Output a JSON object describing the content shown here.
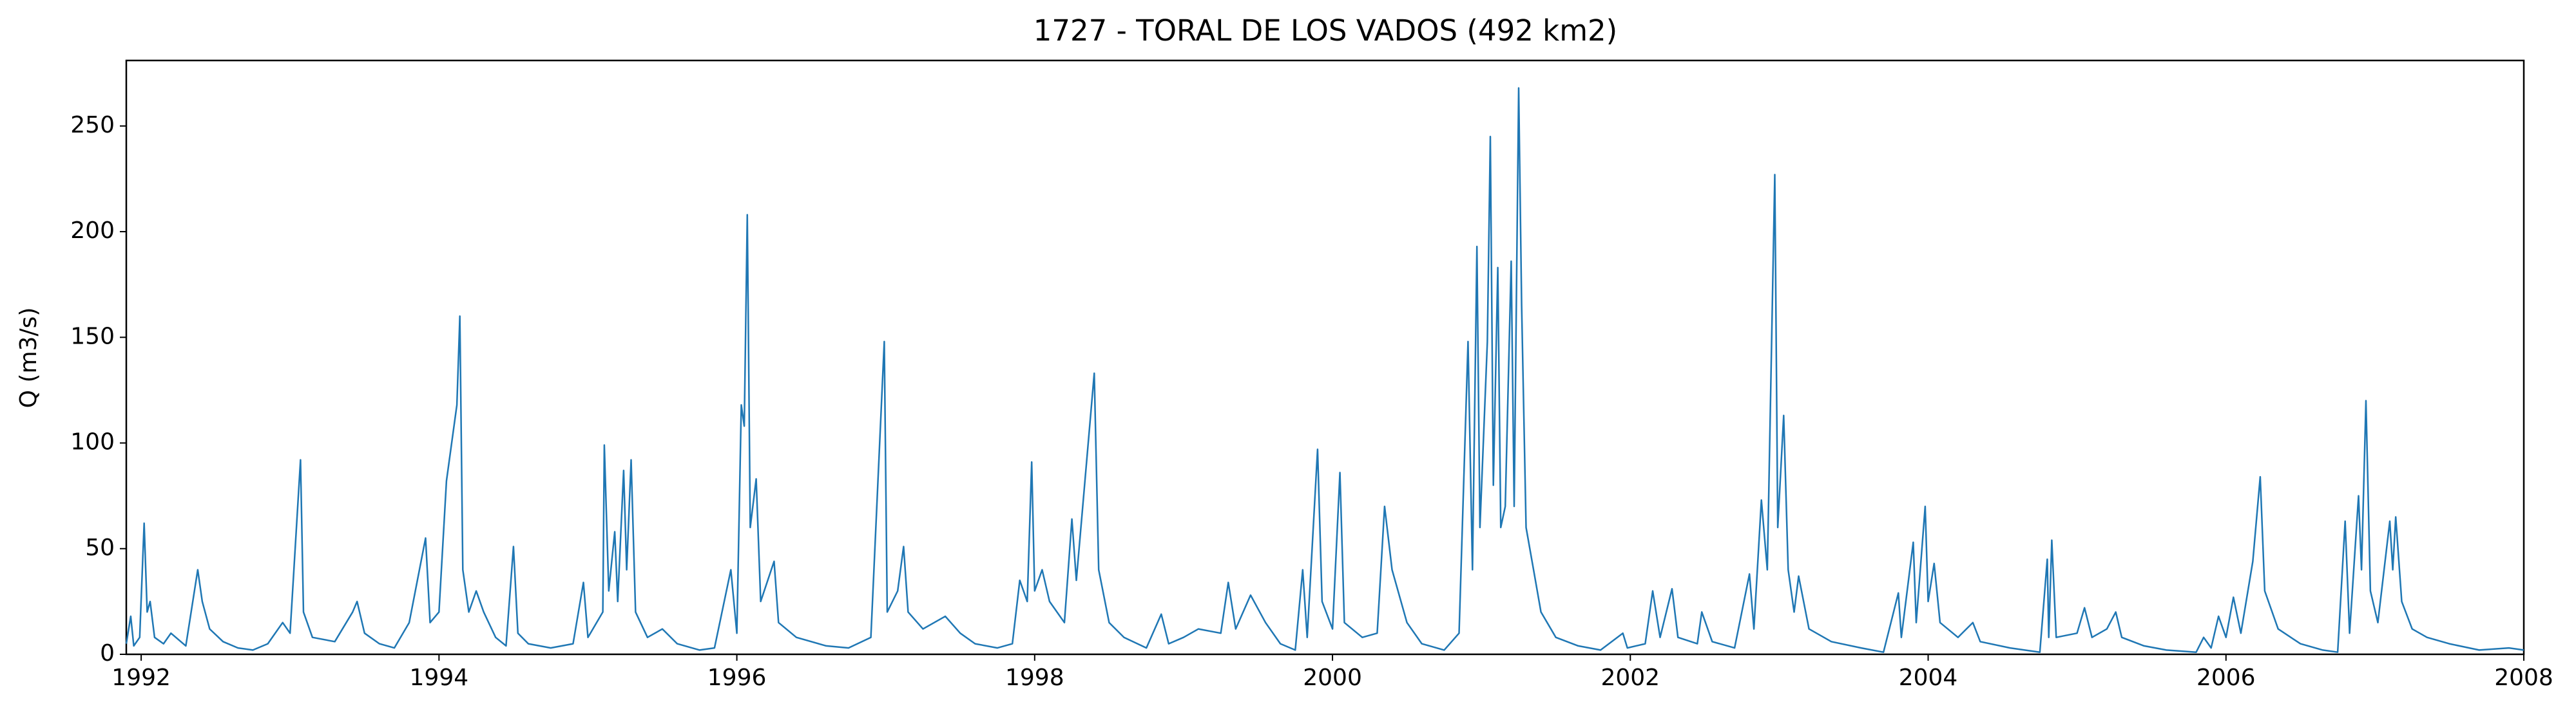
{
  "chart_data": {
    "type": "line",
    "title": "1727 - TORAL DE LOS VADOS (492 km2)",
    "y_label": "Q (m3/s)",
    "color": "#1f77b4",
    "x": [
      1991.9,
      1991.93,
      1991.95,
      1991.99,
      1992.02,
      1992.04,
      1992.06,
      1992.09,
      1992.15,
      1992.2,
      1992.3,
      1992.38,
      1992.41,
      1992.46,
      1992.55,
      1992.65,
      1992.75,
      1992.85,
      1992.95,
      1993.0,
      1993.07,
      1993.09,
      1993.15,
      1993.3,
      1993.42,
      1993.45,
      1993.5,
      1993.6,
      1993.7,
      1993.8,
      1993.91,
      1993.94,
      1994.0,
      1994.05,
      1994.12,
      1994.14,
      1994.16,
      1994.2,
      1994.25,
      1994.3,
      1994.38,
      1994.45,
      1994.5,
      1994.53,
      1994.6,
      1994.75,
      1994.9,
      1994.97,
      1995.0,
      1995.1,
      1995.11,
      1995.14,
      1995.18,
      1995.2,
      1995.24,
      1995.26,
      1995.29,
      1995.32,
      1995.4,
      1995.5,
      1995.6,
      1995.75,
      1995.85,
      1995.96,
      1996.0,
      1996.03,
      1996.05,
      1996.07,
      1996.09,
      1996.13,
      1996.16,
      1996.25,
      1996.28,
      1996.4,
      1996.6,
      1996.75,
      1996.9,
      1996.99,
      1997.01,
      1997.08,
      1997.12,
      1997.15,
      1997.25,
      1997.4,
      1997.5,
      1997.6,
      1997.75,
      1997.85,
      1997.9,
      1997.95,
      1997.98,
      1998.0,
      1998.05,
      1998.1,
      1998.2,
      1998.25,
      1998.28,
      1998.4,
      1998.43,
      1998.5,
      1998.6,
      1998.75,
      1998.85,
      1998.9,
      1999.0,
      1999.1,
      1999.25,
      1999.3,
      1999.35,
      1999.45,
      1999.55,
      1999.65,
      1999.75,
      1999.8,
      1999.83,
      1999.9,
      1999.93,
      2000.0,
      2000.05,
      2000.08,
      2000.2,
      2000.3,
      2000.35,
      2000.4,
      2000.5,
      2000.6,
      2000.75,
      2000.85,
      2000.91,
      2000.94,
      2000.97,
      2000.99,
      2001.04,
      2001.06,
      2001.08,
      2001.11,
      2001.13,
      2001.16,
      2001.2,
      2001.22,
      2001.25,
      2001.27,
      2001.3,
      2001.35,
      2001.4,
      2001.5,
      2001.65,
      2001.8,
      2001.95,
      2001.98,
      2002.1,
      2002.15,
      2002.2,
      2002.28,
      2002.32,
      2002.45,
      2002.48,
      2002.55,
      2002.7,
      2002.8,
      2002.83,
      2002.88,
      2002.92,
      2002.97,
      2002.99,
      2003.03,
      2003.06,
      2003.1,
      2003.13,
      2003.2,
      2003.35,
      2003.55,
      2003.7,
      2003.8,
      2003.82,
      2003.9,
      2003.92,
      2003.98,
      2004.0,
      2004.04,
      2004.08,
      2004.2,
      2004.3,
      2004.35,
      2004.55,
      2004.75,
      2004.8,
      2004.81,
      2004.83,
      2004.86,
      2005.0,
      2005.05,
      2005.1,
      2005.2,
      2005.26,
      2005.3,
      2005.45,
      2005.6,
      2005.8,
      2005.85,
      2005.9,
      2005.95,
      2006.0,
      2006.05,
      2006.1,
      2006.18,
      2006.23,
      2006.26,
      2006.35,
      2006.5,
      2006.65,
      2006.75,
      2006.8,
      2006.83,
      2006.89,
      2006.91,
      2006.94,
      2006.97,
      2007.02,
      2007.1,
      2007.12,
      2007.14,
      2007.18,
      2007.25,
      2007.35,
      2007.5,
      2007.7,
      2007.9,
      2008.0
    ],
    "values": [
      5,
      18,
      4,
      8,
      62,
      20,
      25,
      8,
      5,
      10,
      4,
      40,
      25,
      12,
      6,
      3,
      2,
      5,
      15,
      10,
      92,
      20,
      8,
      6,
      20,
      25,
      10,
      5,
      3,
      15,
      55,
      15,
      20,
      82,
      118,
      160,
      40,
      20,
      30,
      20,
      8,
      4,
      51,
      10,
      5,
      3,
      5,
      34,
      8,
      20,
      99,
      30,
      58,
      25,
      87,
      40,
      92,
      20,
      8,
      12,
      5,
      2,
      3,
      40,
      10,
      118,
      108,
      208,
      60,
      83,
      25,
      44,
      15,
      8,
      4,
      3,
      8,
      148,
      20,
      30,
      51,
      20,
      12,
      18,
      10,
      5,
      3,
      5,
      35,
      25,
      91,
      30,
      40,
      25,
      15,
      64,
      35,
      133,
      40,
      15,
      8,
      3,
      19,
      5,
      8,
      12,
      10,
      34,
      12,
      28,
      15,
      5,
      2,
      40,
      8,
      97,
      25,
      12,
      86,
      15,
      8,
      10,
      70,
      40,
      15,
      5,
      2,
      10,
      148,
      40,
      193,
      60,
      148,
      245,
      80,
      183,
      60,
      70,
      186,
      70,
      268,
      165,
      60,
      40,
      20,
      8,
      4,
      2,
      10,
      3,
      5,
      30,
      8,
      31,
      8,
      5,
      20,
      6,
      3,
      38,
      12,
      73,
      40,
      227,
      60,
      113,
      40,
      20,
      37,
      12,
      6,
      3,
      1,
      29,
      8,
      53,
      15,
      70,
      25,
      43,
      15,
      8,
      15,
      6,
      3,
      1,
      45,
      8,
      54,
      8,
      10,
      22,
      8,
      12,
      20,
      8,
      4,
      2,
      1,
      8,
      3,
      18,
      8,
      27,
      10,
      44,
      84,
      30,
      12,
      5,
      2,
      1,
      63,
      10,
      75,
      40,
      120,
      30,
      15,
      63,
      40,
      65,
      25,
      12,
      8,
      5,
      2,
      3,
      2
    ],
    "xlim": [
      1991.9,
      2008
    ],
    "xticks": [
      1992,
      1994,
      1996,
      1998,
      2000,
      2002,
      2004,
      2006,
      2008
    ],
    "ylim": [
      0,
      281
    ],
    "yticks": [
      0,
      50,
      100,
      150,
      200,
      250
    ]
  }
}
